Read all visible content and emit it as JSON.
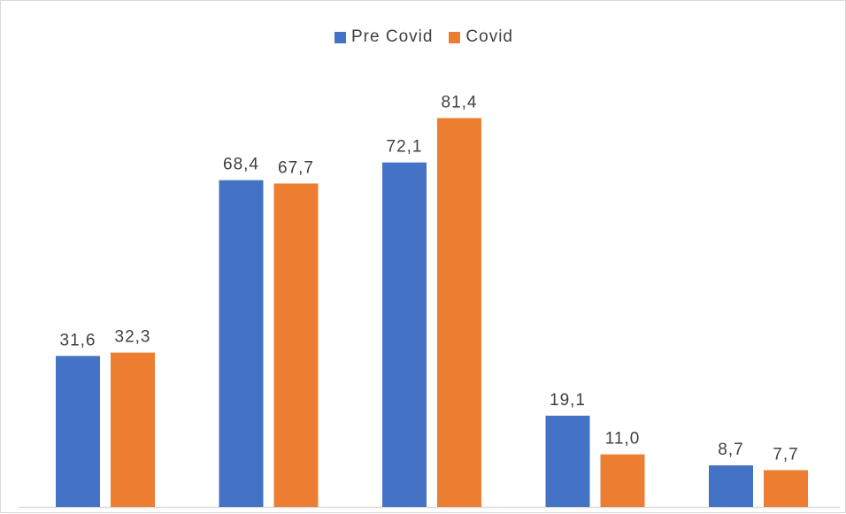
{
  "chart_data": {
    "type": "bar",
    "categories": [
      "",
      "",
      "",
      "",
      ""
    ],
    "series": [
      {
        "name": "Pre Covid",
        "color": "#4472c4",
        "values": [
          31.6,
          68.4,
          72.1,
          19.1,
          8.7
        ],
        "labels": [
          "31,6",
          "68,4",
          "72,1",
          "19,1",
          "8,7"
        ]
      },
      {
        "name": "Covid",
        "color": "#ed7d31",
        "values": [
          32.3,
          67.7,
          81.4,
          11.0,
          7.7
        ],
        "labels": [
          "32,3",
          "67,7",
          "81,4",
          "11,0",
          "7,7"
        ]
      }
    ],
    "ylim": [
      0,
      90
    ],
    "legend_position": "top-center",
    "grid": false,
    "axis_line_color": "#d9d9d9"
  }
}
